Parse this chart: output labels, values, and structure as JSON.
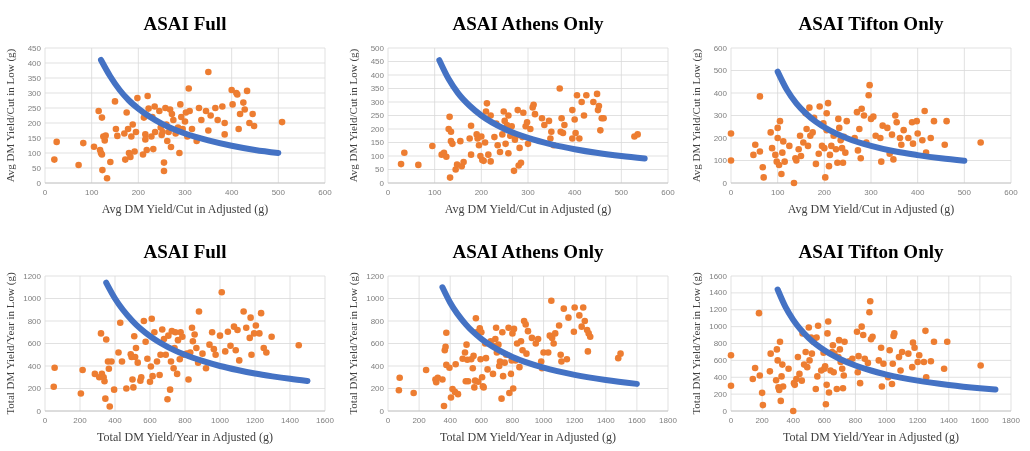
{
  "chart_data": [
    {
      "type": "scatter",
      "title": "ASAI Full",
      "xlabel": "Avg DM Yield/Cut in Adjusted (g)",
      "ylabel": "Avg DM Yield/Cut in Low (g)",
      "xlim": [
        0,
        600
      ],
      "ylim": [
        0,
        450
      ],
      "xticks": [
        0,
        100,
        200,
        300,
        400,
        500,
        600
      ],
      "yticks": [
        0,
        50,
        100,
        150,
        200,
        250,
        300,
        350,
        400,
        450
      ],
      "grid": true,
      "series": [
        {
          "type": "scatter",
          "color": "#ed7d31",
          "marker": "circle",
          "x": [
            20,
            25,
            72,
            82,
            105,
            115,
            118,
            120,
            122,
            122,
            123,
            125,
            128,
            130,
            133,
            140,
            150,
            152,
            155,
            170,
            172,
            175,
            178,
            180,
            183,
            185,
            188,
            192,
            195,
            198,
            210,
            212,
            215,
            215,
            218,
            220,
            222,
            228,
            230,
            232,
            235,
            236,
            245,
            248,
            250,
            252,
            255,
            255,
            258,
            260,
            262,
            265,
            268,
            270,
            272,
            275,
            280,
            285,
            288,
            290,
            292,
            295,
            300,
            302,
            305,
            308,
            310,
            315,
            325,
            330,
            335,
            345,
            350,
            350,
            355,
            365,
            370,
            380,
            385,
            385,
            400,
            402,
            410,
            412,
            415,
            418,
            425,
            428,
            433,
            438,
            445,
            448,
            508
          ],
          "values": [
            78,
            137,
            60,
            133,
            121,
            240,
            110,
            100,
            218,
            95,
            43,
            155,
            142,
            158,
            16,
            70,
            272,
            180,
            157,
            165,
            78,
            235,
            180,
            100,
            87,
            155,
            195,
            105,
            170,
            283,
            95,
            218,
            162,
            145,
            110,
            290,
            248,
            155,
            220,
            113,
            255,
            170,
            240,
            185,
            160,
            170,
            40,
            68,
            250,
            195,
            140,
            170,
            245,
            120,
            230,
            210,
            165,
            185,
            100,
            262,
            220,
            180,
            205,
            235,
            155,
            315,
            240,
            180,
            140,
            250,
            210,
            240,
            370,
            175,
            225,
            250,
            210,
            255,
            200,
            162,
            310,
            262,
            300,
            295,
            180,
            230,
            268,
            245,
            307,
            200,
            230,
            190,
            203
          ]
        },
        {
          "type": "line",
          "color": "#4472c4",
          "marker": "none",
          "x": [
            120,
            140,
            160,
            180,
            200,
            250,
            300,
            350,
            400,
            450,
            500
          ],
          "values": [
            410,
            355,
            310,
            275,
            248,
            198,
            165,
            142,
            124,
            110,
            100
          ]
        }
      ]
    },
    {
      "type": "scatter",
      "title": "ASAI Athens Only",
      "xlabel": "Avg DM Yield/Cut in Adjusted (g)",
      "ylabel": "Avg DM Yield/Cut in Low (g)",
      "xlim": [
        0,
        600
      ],
      "ylim": [
        0,
        500
      ],
      "xticks": [
        0,
        100,
        200,
        300,
        400,
        500,
        600
      ],
      "yticks": [
        0,
        50,
        100,
        150,
        200,
        250,
        300,
        350,
        400,
        450,
        500
      ],
      "grid": true,
      "series": [
        {
          "type": "scatter",
          "color": "#ed7d31",
          "marker": "circle",
          "x": [
            28,
            35,
            65,
            95,
            115,
            120,
            125,
            130,
            132,
            133,
            135,
            135,
            138,
            145,
            148,
            155,
            158,
            162,
            175,
            178,
            178,
            190,
            192,
            195,
            198,
            200,
            202,
            205,
            208,
            210,
            212,
            215,
            220,
            220,
            228,
            232,
            235,
            240,
            245,
            248,
            250,
            252,
            255,
            258,
            258,
            262,
            265,
            270,
            272,
            275,
            278,
            280,
            282,
            285,
            288,
            290,
            295,
            298,
            300,
            305,
            310,
            312,
            315,
            330,
            335,
            345,
            348,
            350,
            355,
            368,
            370,
            372,
            375,
            378,
            395,
            395,
            400,
            402,
            405,
            410,
            415,
            420,
            425,
            440,
            448,
            450,
            452,
            455,
            458,
            462,
            528,
            535
          ],
          "values": [
            70,
            112,
            67,
            137,
            105,
            112,
            97,
            200,
            245,
            20,
            190,
            155,
            145,
            50,
            68,
            155,
            62,
            78,
            165,
            105,
            212,
            180,
            165,
            140,
            100,
            172,
            85,
            82,
            150,
            265,
            295,
            105,
            250,
            80,
            170,
            220,
            140,
            115,
            180,
            265,
            230,
            145,
            215,
            110,
            250,
            175,
            210,
            45,
            160,
            175,
            270,
            65,
            130,
            75,
            170,
            260,
            210,
            225,
            145,
            200,
            280,
            290,
            255,
            240,
            215,
            230,
            165,
            190,
            140,
            350,
            190,
            240,
            185,
            215,
            165,
            270,
            235,
            185,
            325,
            165,
            300,
            250,
            325,
            300,
            330,
            270,
            285,
            195,
            240,
            240,
            172,
            180
          ]
        },
        {
          "type": "line",
          "color": "#4472c4",
          "marker": "none",
          "x": [
            110,
            130,
            150,
            175,
            200,
            250,
            300,
            350,
            400,
            450,
            500,
            550
          ],
          "values": [
            455,
            385,
            333,
            286,
            250,
            200,
            167,
            143,
            125,
            111,
            100,
            91
          ]
        }
      ]
    },
    {
      "type": "scatter",
      "title": "ASAI Tifton Only",
      "xlabel": "Avg DM Yield/Cut in Adjusted (g)",
      "ylabel": "Avg DM Yield/Cut  in Low (g)",
      "xlim": [
        0,
        600
      ],
      "ylim": [
        0,
        600
      ],
      "xticks": [
        0,
        100,
        200,
        300,
        400,
        500,
        600
      ],
      "yticks": [
        0,
        100,
        200,
        300,
        400,
        500,
        600
      ],
      "grid": true,
      "series": [
        {
          "type": "scatter",
          "color": "#ed7d31",
          "marker": "circle",
          "x": [
            0,
            0,
            48,
            52,
            62,
            62,
            68,
            70,
            85,
            88,
            95,
            98,
            100,
            100,
            103,
            105,
            108,
            110,
            112,
            115,
            125,
            135,
            138,
            140,
            145,
            148,
            150,
            155,
            160,
            162,
            165,
            168,
            170,
            175,
            178,
            182,
            188,
            190,
            195,
            198,
            200,
            202,
            205,
            205,
            208,
            210,
            212,
            215,
            220,
            225,
            228,
            230,
            232,
            235,
            238,
            240,
            242,
            245,
            248,
            265,
            270,
            272,
            275,
            278,
            280,
            285,
            290,
            295,
            297,
            300,
            305,
            310,
            320,
            322,
            325,
            335,
            340,
            345,
            348,
            352,
            355,
            362,
            365,
            370,
            380,
            388,
            390,
            398,
            400,
            410,
            415,
            418,
            428,
            435,
            458,
            462,
            535
          ],
          "values": [
            220,
            100,
            125,
            170,
            140,
            385,
            70,
            25,
            225,
            155,
            125,
            95,
            245,
            200,
            80,
            275,
            40,
            135,
            185,
            95,
            165,
            0,
            110,
            100,
            150,
            210,
            120,
            180,
            310,
            240,
            165,
            335,
            210,
            225,
            290,
            85,
            130,
            340,
            165,
            265,
            155,
            25,
            235,
            310,
            355,
            75,
            125,
            165,
            210,
            150,
            90,
            285,
            245,
            190,
            155,
            90,
            205,
            135,
            275,
            200,
            315,
            145,
            240,
            110,
            330,
            300,
            180,
            390,
            435,
            285,
            295,
            210,
            200,
            95,
            255,
            245,
            130,
            215,
            105,
            300,
            270,
            200,
            170,
            235,
            200,
            270,
            175,
            275,
            220,
            190,
            320,
            135,
            200,
            275,
            170,
            275,
            180
          ]
        },
        {
          "type": "line",
          "color": "#4472c4",
          "marker": "none",
          "x": [
            100,
            120,
            140,
            160,
            180,
            200,
            250,
            300,
            350,
            400,
            450,
            500
          ],
          "values": [
            495,
            413,
            354,
            310,
            275,
            248,
            198,
            165,
            141,
            124,
            110,
            99
          ]
        }
      ]
    },
    {
      "type": "scatter",
      "title": "ASAI Full",
      "xlabel": "Total DM Yield/Year in Adjusted (g)",
      "ylabel": "Total DM Yield/Year in Low (g)",
      "xlim": [
        0,
        1600
      ],
      "ylim": [
        0,
        1200
      ],
      "xticks": [
        0,
        200,
        400,
        600,
        800,
        1000,
        1200,
        1400,
        1600
      ],
      "yticks": [
        0,
        200,
        400,
        600,
        800,
        1000,
        1200
      ],
      "grid": true,
      "series": [
        {
          "type": "scatter",
          "color": "#ed7d31",
          "marker": "circle",
          "x": [
            50,
            55,
            205,
            215,
            285,
            310,
            320,
            325,
            335,
            340,
            345,
            350,
            360,
            365,
            370,
            380,
            395,
            420,
            430,
            440,
            465,
            490,
            495,
            500,
            505,
            510,
            515,
            520,
            530,
            545,
            550,
            565,
            575,
            585,
            600,
            605,
            610,
            615,
            625,
            640,
            655,
            660,
            670,
            680,
            690,
            700,
            705,
            715,
            720,
            725,
            735,
            740,
            745,
            755,
            760,
            770,
            775,
            785,
            790,
            810,
            820,
            830,
            840,
            845,
            855,
            865,
            875,
            880,
            900,
            920,
            940,
            955,
            965,
            975,
            1000,
            1010,
            1030,
            1045,
            1060,
            1080,
            1090,
            1100,
            1110,
            1135,
            1150,
            1170,
            1175,
            1180,
            1195,
            1205,
            1225,
            1235,
            1250,
            1265,
            1295,
            1450
          ],
          "values": [
            215,
            385,
            155,
            365,
            330,
            300,
            690,
            330,
            300,
            265,
            110,
            635,
            440,
            375,
            40,
            440,
            190,
            520,
            785,
            440,
            200,
            505,
            480,
            280,
            210,
            665,
            480,
            560,
            430,
            270,
            300,
            800,
            615,
            465,
            260,
            395,
            820,
            310,
            700,
            440,
            320,
            500,
            725,
            640,
            500,
            105,
            670,
            190,
            440,
            710,
            380,
            560,
            700,
            330,
            630,
            460,
            700,
            660,
            500,
            510,
            280,
            520,
            740,
            620,
            680,
            560,
            430,
            885,
            510,
            380,
            590,
            700,
            550,
            500,
            670,
            1055,
            530,
            705,
            580,
            750,
            540,
            720,
            450,
            885,
            740,
            650,
            830,
            500,
            690,
            760,
            690,
            870,
            560,
            520,
            660,
            585
          ]
        },
        {
          "type": "line",
          "color": "#4472c4",
          "marker": "none",
          "x": [
            350,
            400,
            500,
            600,
            700,
            800,
            900,
            1000,
            1100,
            1200,
            1300,
            1400,
            1500
          ],
          "values": [
            1140,
            1000,
            800,
            665,
            570,
            500,
            445,
            400,
            364,
            333,
            308,
            286,
            267
          ]
        }
      ]
    },
    {
      "type": "scatter",
      "title": "ASAI Athens Only",
      "xlabel": "Total DM Yield/Year in Adjusted (g)",
      "ylabel": "Total DM Yield/Year in Low (g)",
      "xlim": [
        0,
        1800
      ],
      "ylim": [
        0,
        1200
      ],
      "xticks": [
        0,
        200,
        400,
        600,
        800,
        1000,
        1200,
        1400,
        1600,
        1800
      ],
      "yticks": [
        0,
        200,
        400,
        600,
        800,
        1000,
        1200
      ],
      "grid": true,
      "series": [
        {
          "type": "scatter",
          "color": "#ed7d31",
          "marker": "circle",
          "x": [
            70,
            75,
            165,
            245,
            305,
            310,
            320,
            350,
            360,
            365,
            370,
            375,
            375,
            395,
            405,
            415,
            430,
            435,
            450,
            480,
            495,
            500,
            505,
            510,
            515,
            535,
            545,
            550,
            555,
            560,
            565,
            570,
            580,
            590,
            595,
            600,
            605,
            610,
            615,
            625,
            630,
            640,
            660,
            675,
            680,
            690,
            695,
            700,
            710,
            715,
            720,
            730,
            735,
            740,
            750,
            760,
            775,
            780,
            790,
            795,
            800,
            805,
            810,
            820,
            830,
            845,
            855,
            865,
            875,
            885,
            890,
            900,
            925,
            950,
            965,
            985,
            990,
            1000,
            1030,
            1040,
            1050,
            1055,
            1065,
            1075,
            1100,
            1110,
            1115,
            1130,
            1150,
            1160,
            1195,
            1200,
            1230,
            1245,
            1255,
            1265,
            1280,
            1285,
            1290,
            1300,
            1480,
            1495
          ],
          "values": [
            185,
            295,
            160,
            365,
            280,
            255,
            295,
            280,
            45,
            540,
            570,
            410,
            695,
            385,
            120,
            195,
            170,
            415,
            150,
            465,
            520,
            265,
            590,
            455,
            265,
            460,
            380,
            490,
            210,
            270,
            825,
            700,
            260,
            735,
            460,
            700,
            300,
            220,
            210,
            600,
            470,
            370,
            620,
            330,
            580,
            640,
            740,
            520,
            590,
            400,
            440,
            110,
            700,
            310,
            430,
            500,
            740,
            160,
            330,
            450,
            690,
            200,
            730,
            450,
            600,
            390,
            620,
            540,
            800,
            770,
            510,
            710,
            650,
            600,
            640,
            440,
            380,
            520,
            520,
            670,
            980,
            650,
            600,
            690,
            760,
            500,
            440,
            910,
            460,
            830,
            705,
            920,
            850,
            750,
            920,
            800,
            720,
            530,
            690,
            660,
            470,
            510
          ]
        },
        {
          "type": "line",
          "color": "#4472c4",
          "marker": "none",
          "x": [
            350,
            400,
            500,
            600,
            700,
            800,
            900,
            1000,
            1200,
            1400,
            1600
          ],
          "values": [
            1100,
            962,
            770,
            641,
            550,
            481,
            428,
            385,
            321,
            275,
            241
          ]
        }
      ]
    },
    {
      "type": "scatter",
      "title": "ASAI Tifton Only",
      "xlabel": "Total DM Yield/Year in Adjusted (g)",
      "ylabel": "Total DM Yield/Year in Low (g)",
      "xlim": [
        0,
        1800
      ],
      "ylim": [
        0,
        1600
      ],
      "xticks": [
        0,
        200,
        400,
        600,
        800,
        1000,
        1200,
        1400,
        1600,
        1800
      ],
      "yticks": [
        0,
        200,
        400,
        600,
        800,
        1000,
        1200,
        1400,
        1600
      ],
      "grid": true,
      "series": [
        {
          "type": "scatter",
          "color": "#ed7d31",
          "marker": "circle",
          "x": [
            0,
            0,
            140,
            155,
            180,
            185,
            200,
            205,
            250,
            255,
            290,
            295,
            300,
            305,
            310,
            315,
            320,
            325,
            330,
            335,
            370,
            400,
            405,
            410,
            420,
            430,
            440,
            455,
            460,
            470,
            480,
            490,
            500,
            505,
            515,
            520,
            530,
            545,
            550,
            555,
            560,
            580,
            595,
            600,
            605,
            610,
            615,
            620,
            625,
            630,
            640,
            650,
            655,
            660,
            665,
            680,
            690,
            695,
            700,
            705,
            715,
            720,
            725,
            730,
            760,
            780,
            810,
            815,
            820,
            830,
            840,
            850,
            860,
            880,
            890,
            895,
            900,
            910,
            950,
            965,
            970,
            980,
            1010,
            1020,
            1035,
            1040,
            1045,
            1050,
            1080,
            1090,
            1100,
            1140,
            1165,
            1170,
            1180,
            1200,
            1210,
            1240,
            1250,
            1255,
            1285,
            1305,
            1370,
            1390,
            1605
          ],
          "values": [
            660,
            300,
            380,
            510,
            1160,
            420,
            215,
            70,
            470,
            680,
            365,
            730,
            600,
            280,
            250,
            820,
            120,
            410,
            550,
            290,
            500,
            0,
            330,
            310,
            380,
            640,
            440,
            360,
            920,
            550,
            700,
            520,
            990,
            600,
            870,
            680,
            820,
            260,
            870,
            410,
            1010,
            480,
            690,
            500,
            530,
            80,
            310,
            920,
            1060,
            220,
            480,
            700,
            780,
            460,
            680,
            260,
            640,
            840,
            730,
            580,
            500,
            270,
            420,
            820,
            590,
            620,
            940,
            460,
            650,
            330,
            1000,
            900,
            620,
            570,
            1170,
            1300,
            850,
            880,
            600,
            750,
            290,
            560,
            400,
            720,
            320,
            560,
            890,
            920,
            640,
            480,
            700,
            680,
            520,
            810,
            750,
            580,
            660,
            580,
            950,
            400,
            590,
            820,
            500,
            820,
            540
          ]
        },
        {
          "type": "line",
          "color": "#4472c4",
          "marker": "none",
          "x": [
            300,
            350,
            400,
            500,
            600,
            700,
            800,
            900,
            1000,
            1200,
            1400,
            1600,
            1700
          ],
          "values": [
            1440,
            1234,
            1080,
            864,
            720,
            617,
            540,
            480,
            432,
            360,
            309,
            270,
            254
          ]
        }
      ]
    }
  ]
}
